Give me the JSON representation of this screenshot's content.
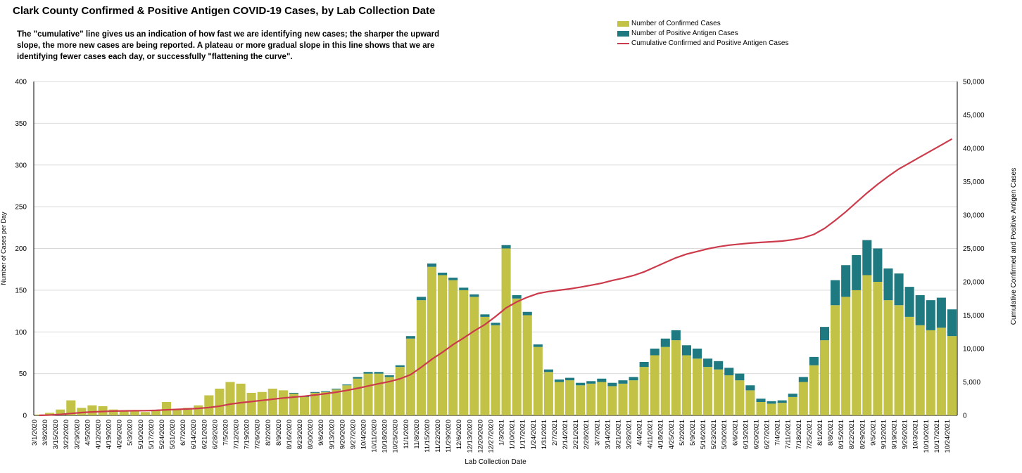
{
  "chart_data": {
    "type": "bar",
    "title": "Clark County Confirmed & Positive Antigen COVID-19 Cases, by Lab Collection Date",
    "description": [
      "The \"cumulative\" line gives  us an indication of how fast we are identifying new cases; the sharper the upward",
      "slope, the more new cases are being reported. A plateau or more gradual slope in this line shows that we are",
      "identifying fewer cases each day, or successfully \"flattening the curve\"."
    ],
    "xlabel": "Lab Collection Date",
    "ylabel": "Number of Cases per Day",
    "y2label": "Cumulative  Confirmed and Positive Antigen Cases",
    "ylim": [
      0,
      400
    ],
    "y2lim": [
      0,
      50000
    ],
    "yticks": [
      "0",
      "50",
      "100",
      "150",
      "200",
      "250",
      "300",
      "350",
      "400"
    ],
    "y2ticks": [
      "0",
      "5,000",
      "10,000",
      "15,000",
      "20,000",
      "25,000",
      "30,000",
      "35,000",
      "40,000",
      "45,000",
      "50,000"
    ],
    "grid": true,
    "stacked": true,
    "legend_position": "top-right",
    "colors": {
      "confirmed": "#c2c346",
      "antigen": "#1e7a80",
      "cumulative": "#cc3b4b"
    },
    "x_start": "3/1/2020",
    "x_end": "10/24/2021",
    "categories": [
      "3/1/2020",
      "3/8/2020",
      "3/15/2020",
      "3/22/2020",
      "3/29/2020",
      "4/5/2020",
      "4/12/2020",
      "4/19/2020",
      "4/26/2020",
      "5/3/2020",
      "5/10/2020",
      "5/17/2020",
      "5/24/2020",
      "5/31/2020",
      "6/7/2020",
      "6/14/2020",
      "6/21/2020",
      "6/28/2020",
      "7/5/2020",
      "7/12/2020",
      "7/19/2020",
      "7/26/2020",
      "8/2/2020",
      "8/9/2020",
      "8/16/2020",
      "8/23/2020",
      "8/30/2020",
      "9/6/2020",
      "9/13/2020",
      "9/20/2020",
      "9/27/2020",
      "10/4/2020",
      "10/11/2020",
      "10/18/2020",
      "10/25/2020",
      "11/1/2020",
      "11/8/2020",
      "11/15/2020",
      "11/22/2020",
      "11/29/2020",
      "12/6/2020",
      "12/13/2020",
      "12/20/2020",
      "12/27/2020",
      "1/3/2021",
      "1/10/2021",
      "1/17/2021",
      "1/24/2021",
      "1/31/2021",
      "2/7/2021",
      "2/14/2021",
      "2/21/2021",
      "2/28/2021",
      "3/7/2021",
      "3/14/2021",
      "3/21/2021",
      "3/28/2021",
      "4/4/2021",
      "4/11/2021",
      "4/18/2021",
      "4/25/2021",
      "5/2/2021",
      "5/9/2021",
      "5/16/2021",
      "5/23/2021",
      "5/30/2021",
      "6/6/2021",
      "6/13/2021",
      "6/20/2021",
      "6/27/2021",
      "7/4/2021",
      "7/11/2021",
      "7/18/2021",
      "7/25/2021",
      "8/1/2021",
      "8/8/2021",
      "8/15/2021",
      "8/22/2021",
      "8/29/2021",
      "9/5/2021",
      "9/12/2021",
      "9/19/2021",
      "9/26/2021",
      "10/3/2021",
      "10/10/2021",
      "10/17/2021",
      "10/24/2021"
    ],
    "series": [
      {
        "name": "Number of Confirmed Cases",
        "values": [
          1,
          3,
          7,
          18,
          9,
          12,
          11,
          7,
          6,
          5,
          4,
          6,
          16,
          7,
          9,
          12,
          24,
          32,
          40,
          38,
          27,
          28,
          32,
          30,
          26,
          22,
          27,
          28,
          31,
          36,
          44,
          50,
          50,
          46,
          58,
          92,
          138,
          178,
          168,
          162,
          150,
          142,
          118,
          108,
          200,
          140,
          120,
          82,
          52,
          40,
          42,
          36,
          38,
          40,
          35,
          38,
          42,
          58,
          72,
          82,
          90,
          72,
          68,
          58,
          55,
          48,
          42,
          30,
          16,
          14,
          15,
          22,
          40,
          60,
          90,
          132,
          142,
          150,
          168,
          160,
          138,
          132,
          118,
          108,
          102,
          105,
          95
        ]
      },
      {
        "name": "Number of Positive Antigen Cases",
        "values": [
          0,
          0,
          0,
          0,
          0,
          0,
          0,
          0,
          0,
          0,
          0,
          0,
          0,
          0,
          0,
          0,
          0,
          0,
          0,
          0,
          0,
          0,
          0,
          0,
          1,
          1,
          1,
          1,
          1,
          1,
          2,
          2,
          2,
          2,
          2,
          3,
          4,
          4,
          3,
          3,
          3,
          3,
          3,
          3,
          4,
          4,
          4,
          3,
          3,
          3,
          3,
          3,
          3,
          4,
          4,
          4,
          4,
          6,
          8,
          10,
          12,
          12,
          12,
          10,
          10,
          9,
          8,
          6,
          4,
          3,
          3,
          4,
          6,
          10,
          16,
          30,
          38,
          42,
          42,
          40,
          38,
          38,
          36,
          36,
          36,
          36,
          32
        ]
      },
      {
        "name": "Cumulative Confirmed and Positive Antigen Cases",
        "values": [
          1,
          50,
          150,
          280,
          420,
          520,
          580,
          640,
          670,
          690,
          710,
          750,
          830,
          900,
          960,
          1040,
          1180,
          1380,
          1680,
          1900,
          2060,
          2240,
          2420,
          2600,
          2740,
          2870,
          3050,
          3250,
          3470,
          3750,
          4050,
          4400,
          4750,
          5060,
          5470,
          6100,
          7200,
          8400,
          9450,
          10600,
          11600,
          12650,
          13600,
          14800,
          16100,
          17000,
          17700,
          18250,
          18550,
          18750,
          18950,
          19200,
          19500,
          19800,
          20200,
          20550,
          20950,
          21500,
          22200,
          22900,
          23600,
          24150,
          24550,
          24950,
          25250,
          25500,
          25650,
          25800,
          25900,
          26000,
          26100,
          26300,
          26600,
          27100,
          28000,
          29200,
          30500,
          31900,
          33300,
          34600,
          35800,
          36900,
          37800,
          38700,
          39600,
          40500,
          41400
        ]
      }
    ]
  }
}
